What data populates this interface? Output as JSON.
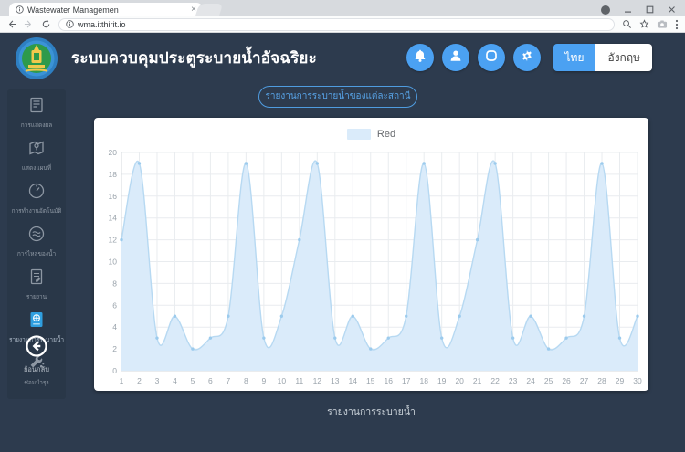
{
  "browser": {
    "tab_title": "Wastewater Managemen",
    "url": "wma.itthirit.io"
  },
  "header": {
    "title": "ระบบควบคุมประตูระบายน้ำอัจฉริยะ",
    "language": {
      "thai": "ไทย",
      "english": "อังกฤษ"
    }
  },
  "page": {
    "report_pill": "รายงานการระบายน้ำของแต่ละสถานี"
  },
  "sidebar": {
    "items": [
      {
        "icon": "display-icon",
        "label": "การแสดงผล",
        "active": false
      },
      {
        "icon": "map-icon",
        "label": "แสดงแผนที่",
        "active": false
      },
      {
        "icon": "gauge-icon",
        "label": "การทำงานอัตโนมัติ",
        "active": false
      },
      {
        "icon": "waves-icon",
        "label": "การไหลของน้ำ",
        "active": false
      },
      {
        "icon": "report-icon",
        "label": "รายงาน",
        "active": false
      },
      {
        "icon": "drainage-report-icon",
        "label": "รายงานการระบายน้ำ",
        "active": true
      },
      {
        "icon": "maintenance-icon",
        "label": "ซ่อมบำรุง",
        "active": false
      }
    ],
    "back_label": "ย้อนกลับ"
  },
  "colors": {
    "accent_blue": "#4ba1f2",
    "background_dark": "#2d3b4e"
  },
  "chart_data": {
    "type": "area",
    "title": "รายงานการระบายน้ำ",
    "legend": "Red",
    "legend_position": "top-center",
    "grid": true,
    "x": [
      1,
      2,
      3,
      4,
      5,
      6,
      7,
      8,
      9,
      10,
      11,
      12,
      13,
      14,
      15,
      16,
      17,
      18,
      19,
      20,
      21,
      22,
      23,
      24,
      25,
      26,
      27,
      28,
      29,
      30
    ],
    "values": [
      12,
      19,
      3,
      5,
      2,
      3,
      5,
      19,
      3,
      5,
      12,
      19,
      3,
      5,
      2,
      3,
      5,
      19,
      3,
      5,
      12,
      19,
      3,
      5,
      2,
      3,
      5,
      19,
      3,
      5
    ],
    "xlabel": "",
    "ylabel": "",
    "ylim": [
      0,
      20
    ],
    "y_tick_step": 2,
    "colors": {
      "fill": "#daebfa",
      "line": "#b7d9f2",
      "point": "#9ccbed",
      "grid": "#e9ecef",
      "axis_line": "#d4d8dc",
      "axis_text": "#9aa3ab"
    }
  }
}
